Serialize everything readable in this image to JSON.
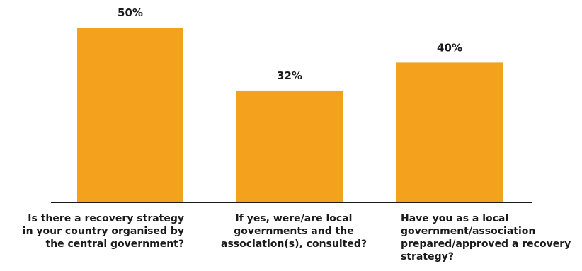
{
  "chart_data": {
    "type": "bar",
    "categories": [
      "Is there a recovery strategy in your country organised by the central government?",
      "If yes, were/are local governments and the association(s), consulted?",
      "Have you as a local government/association prepared/approved a recovery strategy?"
    ],
    "values": [
      50,
      32,
      40
    ],
    "value_labels": [
      "50%",
      "32%",
      "40%"
    ],
    "ylim": [
      0,
      55
    ],
    "grid": false,
    "bar_color": "#F4A11E",
    "axis_color": "#1a1a1a"
  }
}
